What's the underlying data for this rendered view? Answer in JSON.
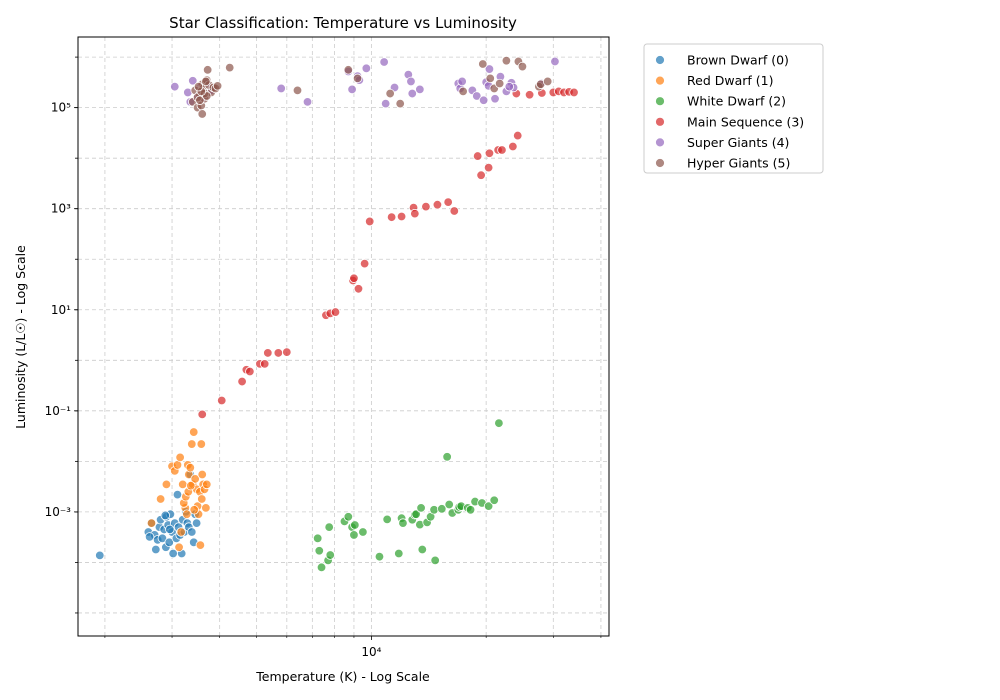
{
  "chart_data": {
    "type": "scatter",
    "title": "Star Classification: Temperature vs Luminosity",
    "xlabel": "Temperature (K) - Log Scale",
    "ylabel": "Luminosity (L/L☉) - Log Scale",
    "xscale": "log",
    "yscale": "log",
    "xlim": [
      1700,
      42000
    ],
    "ylim": [
      3.5e-06,
      2500000
    ],
    "grid": true,
    "legend_position": "outside-top-right",
    "x_ticks": [
      {
        "value": 10000,
        "label": "10⁴"
      }
    ],
    "y_ticks": [
      {
        "value": 0.001,
        "label": "10⁻³"
      },
      {
        "value": 0.1,
        "label": "10⁻¹"
      },
      {
        "value": 10,
        "label": "10¹"
      },
      {
        "value": 1000,
        "label": "10³"
      },
      {
        "value": 100000,
        "label": "10⁵"
      }
    ],
    "series": [
      {
        "name": "Brown Dwarf (0)",
        "color": "#1f77b4",
        "points": [
          [
            1939,
            0.000138
          ],
          [
            2600,
            0.0004
          ],
          [
            2650,
            0.0006
          ],
          [
            2700,
            0.00035
          ],
          [
            2750,
            0.00028
          ],
          [
            2780,
            0.0005
          ],
          [
            2800,
            0.0007
          ],
          [
            2830,
            0.0003
          ],
          [
            2860,
            0.00045
          ],
          [
            2890,
            0.0002
          ],
          [
            2900,
            0.0008
          ],
          [
            2930,
            0.00055
          ],
          [
            2950,
            0.00025
          ],
          [
            2970,
            0.0009
          ],
          [
            3000,
            0.0004
          ],
          [
            3020,
            0.00015
          ],
          [
            3050,
            0.0006
          ],
          [
            3080,
            0.0003
          ],
          [
            3100,
            0.0022
          ],
          [
            3120,
            0.0005
          ],
          [
            3150,
            0.00035
          ],
          [
            3180,
            0.00015
          ],
          [
            3200,
            0.0007
          ],
          [
            3230,
            0.0004
          ],
          [
            3260,
            0.001
          ],
          [
            3290,
            0.0006
          ],
          [
            3320,
            0.0005
          ],
          [
            3350,
            0.0055
          ],
          [
            3380,
            0.0004
          ],
          [
            3420,
            0.00025
          ],
          [
            3450,
            0.0009
          ],
          [
            3480,
            0.0006
          ],
          [
            2620,
            0.00032
          ],
          [
            2720,
            0.00018
          ],
          [
            2880,
            0.00085
          ],
          [
            2960,
            0.00045
          ]
        ]
      },
      {
        "name": "Red Dwarf (1)",
        "color": "#ff7f0e",
        "points": [
          [
            2650,
            0.0006
          ],
          [
            2800,
            0.0018
          ],
          [
            2900,
            0.0035
          ],
          [
            3000,
            0.008
          ],
          [
            3050,
            0.0065
          ],
          [
            3100,
            0.0085
          ],
          [
            3150,
            0.012
          ],
          [
            3200,
            0.0035
          ],
          [
            3250,
            0.0012
          ],
          [
            3280,
            0.0009
          ],
          [
            3300,
            0.0085
          ],
          [
            3320,
            0.0055
          ],
          [
            3350,
            0.0075
          ],
          [
            3380,
            0.022
          ],
          [
            3400,
            0.0035
          ],
          [
            3420,
            0.038
          ],
          [
            3450,
            0.0045
          ],
          [
            3480,
            0.0028
          ],
          [
            3500,
            0.0013
          ],
          [
            3520,
            0.0009
          ],
          [
            3550,
            0.0025
          ],
          [
            3580,
            0.022
          ],
          [
            3600,
            0.0055
          ],
          [
            3620,
            0.0035
          ],
          [
            3650,
            0.0028
          ],
          [
            3680,
            0.0012
          ],
          [
            3700,
            0.0035
          ],
          [
            3130,
            0.0002
          ],
          [
            3170,
            0.0004
          ],
          [
            3220,
            0.0015
          ],
          [
            3260,
            0.002
          ],
          [
            3310,
            0.0025
          ],
          [
            3360,
            0.0033
          ],
          [
            3560,
            0.00022
          ],
          [
            3430,
            0.0011
          ],
          [
            3590,
            0.0018
          ]
        ]
      },
      {
        "name": "White Dwarf (2)",
        "color": "#2ca02c",
        "points": [
          [
            7230,
            0.0003
          ],
          [
            7300,
            0.00017
          ],
          [
            7400,
            8e-05
          ],
          [
            7700,
            0.00011
          ],
          [
            7750,
            0.0005
          ],
          [
            7800,
            0.00014
          ],
          [
            8500,
            0.00065
          ],
          [
            8700,
            0.0008
          ],
          [
            8900,
            0.0005
          ],
          [
            9000,
            0.00035
          ],
          [
            9050,
            0.00055
          ],
          [
            9500,
            0.0004
          ],
          [
            10500,
            0.00013
          ],
          [
            11000,
            0.00071
          ],
          [
            11800,
            0.00015
          ],
          [
            12000,
            0.00075
          ],
          [
            12100,
            0.0006
          ],
          [
            12800,
            0.0007
          ],
          [
            13000,
            0.00088
          ],
          [
            13100,
            0.0009
          ],
          [
            13400,
            0.00056
          ],
          [
            13500,
            0.0012
          ],
          [
            13600,
            0.00018
          ],
          [
            14000,
            0.00062
          ],
          [
            14300,
            0.0008
          ],
          [
            14600,
            0.0011
          ],
          [
            14700,
            0.00011
          ],
          [
            15300,
            0.00115
          ],
          [
            15800,
            0.0123
          ],
          [
            16000,
            0.0014
          ],
          [
            16300,
            0.00095
          ],
          [
            16900,
            0.0011
          ],
          [
            17000,
            0.00125
          ],
          [
            17200,
            0.0013
          ],
          [
            17900,
            0.0012
          ],
          [
            18200,
            0.0011
          ],
          [
            18700,
            0.0016
          ],
          [
            19500,
            0.0015
          ],
          [
            20300,
            0.0013
          ],
          [
            21000,
            0.0017
          ],
          [
            21600,
            0.057
          ]
        ]
      },
      {
        "name": "Main Sequence (3)",
        "color": "#d62728",
        "points": [
          [
            3600,
            0.085
          ],
          [
            4050,
            0.16
          ],
          [
            4580,
            0.38
          ],
          [
            4700,
            0.65
          ],
          [
            4800,
            0.6
          ],
          [
            5100,
            0.85
          ],
          [
            5250,
            0.85
          ],
          [
            5350,
            1.4
          ],
          [
            5700,
            1.4
          ],
          [
            6000,
            1.45
          ],
          [
            7600,
            7.8
          ],
          [
            7800,
            8.5
          ],
          [
            8050,
            9
          ],
          [
            8950,
            38
          ],
          [
            9000,
            42
          ],
          [
            9250,
            26
          ],
          [
            9600,
            82
          ],
          [
            9900,
            560
          ],
          [
            11300,
            680
          ],
          [
            12000,
            700
          ],
          [
            12900,
            1050
          ],
          [
            13000,
            800
          ],
          [
            13900,
            1100
          ],
          [
            14900,
            1200
          ],
          [
            15900,
            1350
          ],
          [
            16500,
            900
          ],
          [
            19000,
            11000
          ],
          [
            19400,
            4600
          ],
          [
            20300,
            6500
          ],
          [
            20400,
            12500
          ],
          [
            21500,
            14500
          ],
          [
            22000,
            14500
          ],
          [
            23500,
            17000
          ],
          [
            24200,
            28000
          ],
          [
            24000,
            190000
          ],
          [
            26000,
            180000
          ],
          [
            28000,
            195000
          ],
          [
            30000,
            200000
          ],
          [
            31000,
            210000
          ],
          [
            32000,
            200000
          ],
          [
            33000,
            205000
          ],
          [
            34000,
            200000
          ]
        ]
      },
      {
        "name": "Super Giants (4)",
        "color": "#9467bd",
        "points": [
          [
            3050,
            260000
          ],
          [
            3300,
            200000
          ],
          [
            3350,
            130000
          ],
          [
            3400,
            340000
          ],
          [
            3500,
            170000
          ],
          [
            3550,
            250000
          ],
          [
            3600,
            150000
          ],
          [
            3700,
            300000
          ],
          [
            3800,
            220000
          ],
          [
            5800,
            240000
          ],
          [
            6800,
            130000
          ],
          [
            8700,
            520000
          ],
          [
            8900,
            230000
          ],
          [
            9200,
            420000
          ],
          [
            9300,
            350000
          ],
          [
            9700,
            600000
          ],
          [
            10800,
            800000
          ],
          [
            10900,
            120000
          ],
          [
            11500,
            250000
          ],
          [
            12500,
            450000
          ],
          [
            12700,
            330000
          ],
          [
            12800,
            190000
          ],
          [
            13400,
            230000
          ],
          [
            16900,
            300000
          ],
          [
            17100,
            240000
          ],
          [
            17300,
            330000
          ],
          [
            18400,
            220000
          ],
          [
            18900,
            170000
          ],
          [
            19700,
            140000
          ],
          [
            20000,
            320000
          ],
          [
            20300,
            270000
          ],
          [
            20400,
            580000
          ],
          [
            21100,
            150000
          ],
          [
            21800,
            410000
          ],
          [
            22600,
            210000
          ],
          [
            23300,
            310000
          ],
          [
            23600,
            250000
          ],
          [
            27900,
            300000
          ],
          [
            30300,
            820000
          ],
          [
            23000,
            260000
          ]
        ]
      },
      {
        "name": "Hyper Giants (5)",
        "color": "#8c564b",
        "points": [
          [
            3400,
            130000
          ],
          [
            3450,
            220000
          ],
          [
            3500,
            100000
          ],
          [
            3550,
            180000
          ],
          [
            3580,
            110000
          ],
          [
            3600,
            290000
          ],
          [
            3620,
            240000
          ],
          [
            3650,
            150000
          ],
          [
            3700,
            350000
          ],
          [
            3720,
            560000
          ],
          [
            3750,
            280000
          ],
          [
            3800,
            200000
          ],
          [
            3850,
            250000
          ],
          [
            3900,
            240000
          ],
          [
            3950,
            270000
          ],
          [
            3600,
            75000
          ],
          [
            4250,
            620000
          ],
          [
            6400,
            220000
          ],
          [
            8700,
            560000
          ],
          [
            9200,
            380000
          ],
          [
            11200,
            190000
          ],
          [
            11900,
            120000
          ],
          [
            17400,
            210000
          ],
          [
            19600,
            730000
          ],
          [
            20500,
            380000
          ],
          [
            21000,
            240000
          ],
          [
            21700,
            300000
          ],
          [
            22600,
            850000
          ],
          [
            24300,
            820000
          ],
          [
            27500,
            260000
          ],
          [
            27800,
            290000
          ],
          [
            29000,
            330000
          ],
          [
            24900,
            650000
          ],
          [
            3500,
            160000
          ],
          [
            3550,
            140000
          ],
          [
            3650,
            190000
          ],
          [
            3700,
            170000
          ],
          [
            3680,
            330000
          ],
          [
            3580,
            210000
          ],
          [
            3520,
            260000
          ]
        ]
      }
    ]
  }
}
